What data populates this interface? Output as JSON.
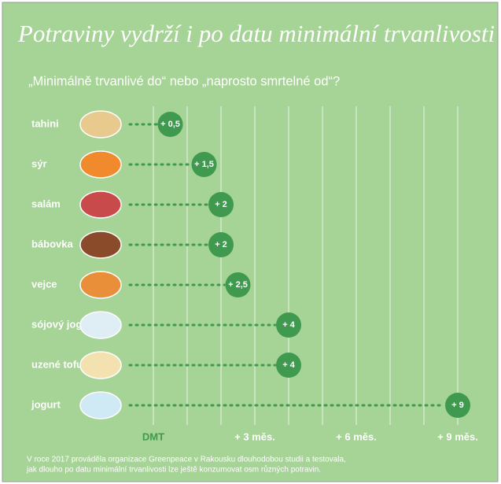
{
  "chart_data": {
    "type": "dot",
    "title": "Potraviny vydrží i po datu minimální trvanlivosti",
    "subtitle": "„Minimálně trvanlivé do“ nebo „naprosto smrtelné od“?",
    "categories": [
      "tahini",
      "sýr",
      "salám",
      "bábovka",
      "vejce",
      "sójový jogurt",
      "uzené tofu",
      "jogurt"
    ],
    "values": [
      0.5,
      1.5,
      2,
      2,
      2.5,
      4,
      4,
      9
    ],
    "value_labels": [
      "+ 0,5",
      "+ 1,5",
      "+ 2",
      "+ 2",
      "+ 2,5",
      "+ 4",
      "+ 4",
      "+ 9"
    ],
    "color": "#3f9a50",
    "xlim": [
      0,
      9
    ],
    "xticks": [
      {
        "value": 0,
        "label": "DMT"
      },
      {
        "value": 3,
        "label": "+ 3 měs."
      },
      {
        "value": 6,
        "label": "+ 6 měs."
      },
      {
        "value": 9,
        "label": "+ 9 měs."
      }
    ],
    "minor_xticks": [
      1,
      2,
      4,
      5,
      7,
      8
    ],
    "grid": true,
    "footnote": [
      "V roce 2017 prováděla organizace Greenpeace v Rakousku dlouhodobou studii a testovala,",
      "jak dlouho po datu minimální trvanlivosti lze ještě konzumovat osm různých potravin."
    ]
  }
}
